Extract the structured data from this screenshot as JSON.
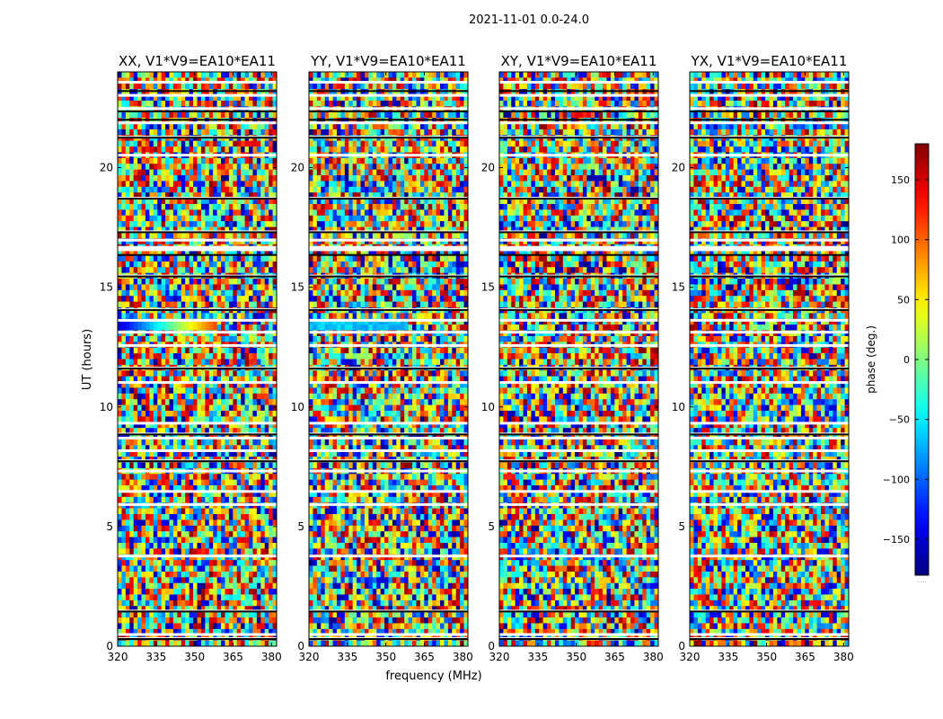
{
  "figure": {
    "suptitle": "2021-11-01 0.0-24.0",
    "xlabel": "frequency (MHz)",
    "ylabel": "UT (hours)"
  },
  "colorbar": {
    "label": "phase (deg.)",
    "ticks": [
      150,
      100,
      50,
      0,
      -50,
      -100,
      -150
    ],
    "tick_labels": [
      "150",
      "100",
      "50",
      "0",
      "−50",
      "−100",
      "−150"
    ],
    "range": [
      -180,
      180
    ],
    "colormap": "jet",
    "footer": "....."
  },
  "chart_data": {
    "type": "heatmap",
    "title": "2021-11-01 0.0-24.0",
    "xlabel": "frequency (MHz)",
    "ylabel": "UT (hours)",
    "xlim": [
      320,
      382
    ],
    "ylim": [
      0,
      24
    ],
    "xticks": [
      320,
      335,
      350,
      365,
      380
    ],
    "yticks": [
      0,
      5,
      10,
      15,
      20
    ],
    "value_name": "phase (deg.)",
    "value_range": [
      -180,
      180
    ],
    "panels": [
      {
        "title": "XX, V1*V9=EA10*EA11"
      },
      {
        "title": "YY, V1*V9=EA10*EA11"
      },
      {
        "title": "XY, V1*V9=EA10*EA11"
      },
      {
        "title": "YX, V1*V9=EA10*EA11"
      }
    ],
    "blank_rows_hours": [
      0.3,
      0.47,
      1.45,
      3.75,
      5.9,
      6.45,
      7.3,
      7.73,
      8.15,
      8.68,
      8.85,
      9.3,
      11.0,
      11.6,
      12.55,
      13.1,
      13.6,
      14.05,
      15.45,
      16.55,
      16.65,
      16.95,
      17.3,
      18.7,
      20.5,
      21.25,
      21.85,
      22.45,
      23.0,
      23.55
    ],
    "black_rows_hours": [
      0.3,
      1.45,
      7.73,
      8.85,
      11.6,
      14.05,
      15.45,
      16.35,
      17.3,
      18.7,
      21.25,
      22.0,
      22.35,
      23.2
    ]
  }
}
